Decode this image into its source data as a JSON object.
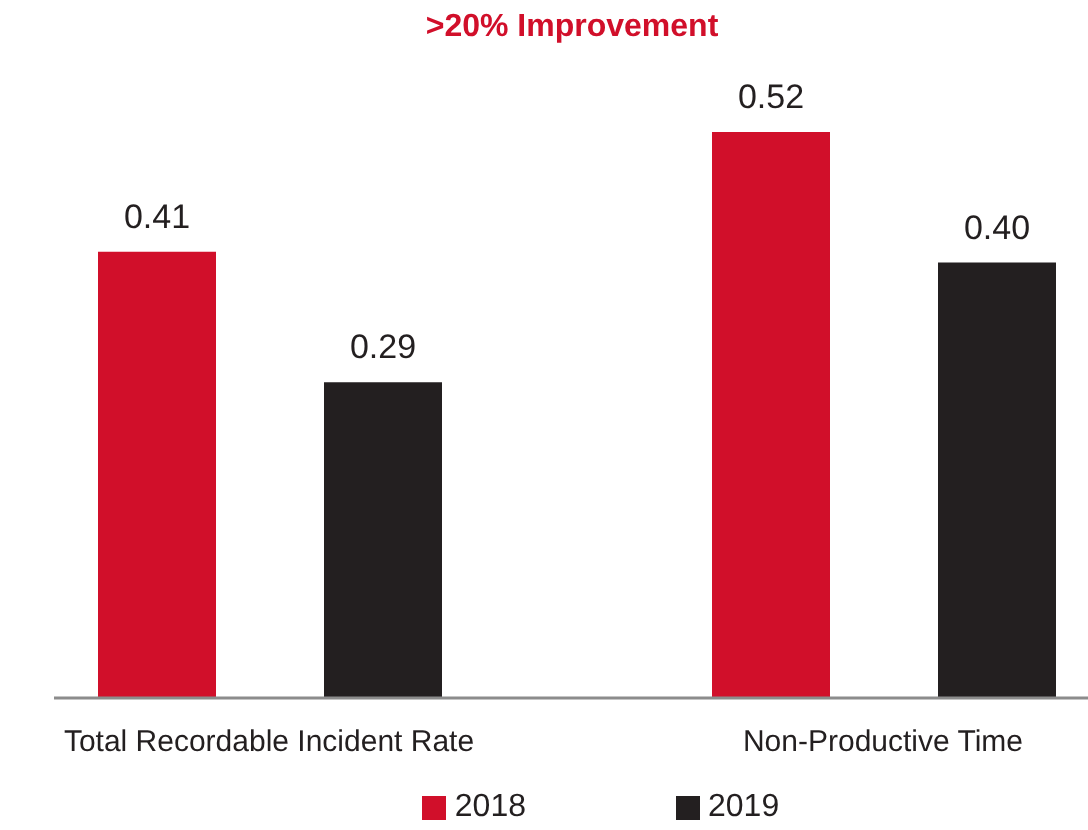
{
  "chart_data": {
    "type": "bar",
    "title": ">20% Improvement",
    "categories": [
      "Total Recordable Incident Rate",
      "Non-Productive Time"
    ],
    "series": [
      {
        "name": "2018",
        "color": "#d10f2a",
        "values": [
          0.41,
          0.52
        ],
        "value_labels": [
          "0.41",
          "0.52"
        ]
      },
      {
        "name": "2019",
        "color": "#231f20",
        "values": [
          0.29,
          0.4
        ],
        "value_labels": [
          "0.29",
          "0.40"
        ]
      }
    ],
    "legend": "bottom",
    "tick_labels": "x"
  }
}
